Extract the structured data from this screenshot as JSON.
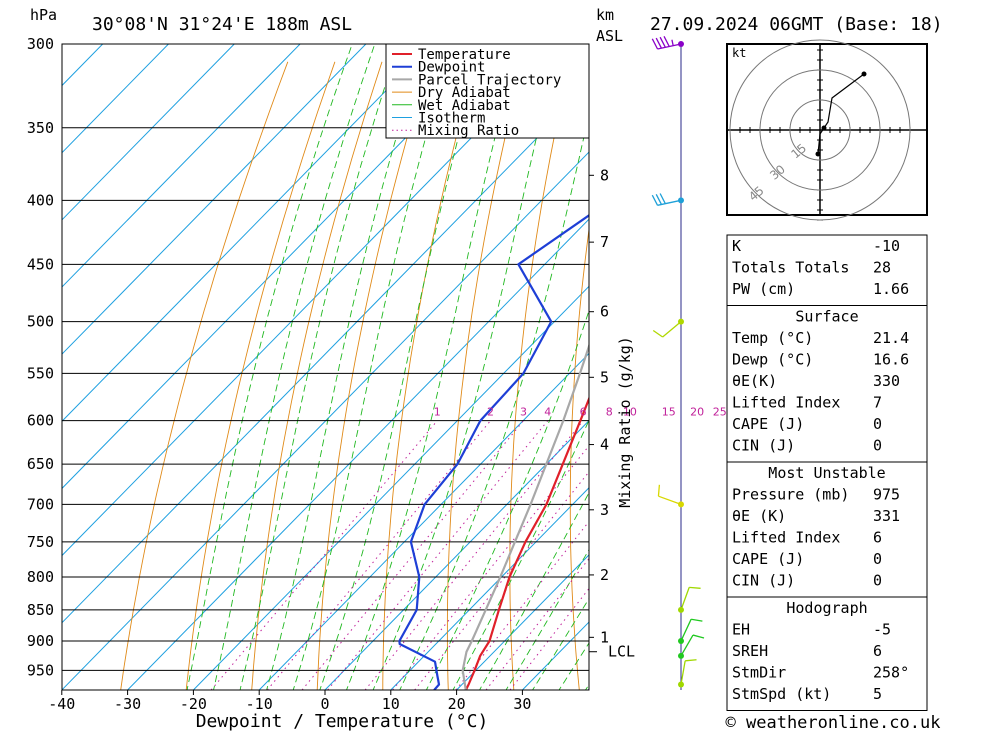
{
  "header": {
    "pressure_unit": "hPa",
    "location": "30°08'N  31°24'E  188m  ASL",
    "km_label": "km",
    "asl_label": "ASL",
    "datetime": "27.09.2024  06GMT  (Base: 18)"
  },
  "chart_data": {
    "type": "line",
    "subtype": "skew-T log-p diagram",
    "xlabel": "Dewpoint / Temperature (°C)",
    "ylabel": "hPa",
    "mixing_ratio_axis_label": "Mixing Ratio (g/kg)",
    "xlim": [
      -40,
      40
    ],
    "ylim": [
      985,
      300
    ],
    "pressure_ticks": [
      300,
      350,
      400,
      450,
      500,
      550,
      600,
      650,
      700,
      750,
      800,
      850,
      900,
      950
    ],
    "temperature_ticks": [
      -40,
      -30,
      -20,
      -10,
      0,
      10,
      20,
      30
    ],
    "km_ticks": [
      {
        "km": 8,
        "p": 382
      },
      {
        "km": 7,
        "p": 432
      },
      {
        "km": 6,
        "p": 491
      },
      {
        "km": 5,
        "p": 554
      },
      {
        "km": 4,
        "p": 627
      },
      {
        "km": 3,
        "p": 707
      },
      {
        "km": 2,
        "p": 797
      },
      {
        "km": 1,
        "p": 894
      }
    ],
    "lcl": {
      "label": "LCL",
      "p": 918
    },
    "mixing_ratio_labels": [
      "1",
      "2",
      "3",
      "4",
      "6",
      "8",
      "10",
      "15",
      "20",
      "25"
    ],
    "mixing_ratio_values": [
      1,
      2,
      3,
      4,
      6,
      8,
      10,
      15,
      20,
      25
    ],
    "legend": [
      "Temperature",
      "Dewpoint",
      "Parcel Trajectory",
      "Dry Adiabat",
      "Wet Adiabat",
      "Isotherm",
      "Mixing Ratio"
    ],
    "legend_position": "top-right of plot",
    "series": [
      {
        "name": "Temperature",
        "color": "#e0202a",
        "p": [
          985,
          975,
          950,
          925,
          900,
          850,
          800,
          750,
          700,
          650,
          600,
          550,
          500,
          450,
          400,
          350,
          300
        ],
        "t": [
          21.4,
          21.0,
          19.8,
          18.5,
          17.7,
          14.5,
          11.2,
          8.4,
          6.0,
          2.5,
          -1.3,
          -5.5,
          -10.0,
          -15.5,
          -21.5,
          -31.0,
          -40.5
        ]
      },
      {
        "name": "Dewpoint",
        "color": "#1e3fd6",
        "p": [
          985,
          975,
          960,
          935,
          905,
          900,
          850,
          800,
          750,
          700,
          650,
          600,
          550,
          500,
          450,
          400,
          350,
          300
        ],
        "t": [
          16.6,
          16.5,
          15.0,
          12.5,
          4.5,
          4.0,
          2.0,
          -2.5,
          -9.0,
          -12.5,
          -13.5,
          -16.5,
          -17.0,
          -20.5,
          -34.0,
          -29.5,
          -34.0,
          -40.0
        ]
      },
      {
        "name": "Parcel Trajectory",
        "color": "#a8a8a8",
        "p": [
          985,
          950,
          918,
          900,
          850,
          800,
          750,
          700,
          650,
          600,
          550,
          500,
          450,
          400,
          350,
          300
        ],
        "t": [
          21.4,
          18.0,
          15.8,
          15.0,
          12.5,
          9.8,
          6.8,
          3.6,
          0.0,
          -3.9,
          -8.4,
          -13.5,
          -19.5,
          -26.5,
          -35.0,
          -44.5
        ]
      }
    ],
    "hodograph": {
      "unit_label": "kt",
      "ring_labels": [
        "15",
        "30",
        "45"
      ],
      "ring_speeds": [
        15,
        30,
        45
      ],
      "points": [
        [
          -1,
          -12
        ],
        [
          0,
          -2
        ],
        [
          2,
          1
        ],
        [
          4,
          4
        ],
        [
          6,
          16
        ],
        [
          22,
          28
        ]
      ]
    },
    "wind_barbs": [
      {
        "p": 300,
        "dir": 258,
        "speed": 35,
        "color": "#8a00c8"
      },
      {
        "p": 400,
        "dir": 258,
        "speed": 30,
        "color": "#1ea0d8"
      },
      {
        "p": 500,
        "dir": 230,
        "speed": 10,
        "color": "#b0d800"
      },
      {
        "p": 700,
        "dir": 290,
        "speed": 10,
        "color": "#d8d800"
      },
      {
        "p": 850,
        "dir": 20,
        "speed": 10,
        "color": "#a0d800"
      },
      {
        "p": 900,
        "dir": 25,
        "speed": 10,
        "color": "#20c820"
      },
      {
        "p": 925,
        "dir": 30,
        "speed": 10,
        "color": "#20c820"
      },
      {
        "p": 975,
        "dir": 10,
        "speed": 10,
        "color": "#a0d800"
      }
    ]
  },
  "indices": {
    "rows": [
      {
        "label": "K",
        "value": "-10"
      },
      {
        "label": "Totals Totals",
        "value": "28"
      },
      {
        "label": "PW (cm)",
        "value": "1.66"
      }
    ]
  },
  "surface": {
    "title": "Surface",
    "rows": [
      {
        "label": "Temp (°C)",
        "value": "21.4"
      },
      {
        "label": "Dewp (°C)",
        "value": "16.6"
      },
      {
        "label": "θE(K)",
        "value": "330"
      },
      {
        "label": "Lifted Index",
        "value": "7"
      },
      {
        "label": "CAPE (J)",
        "value": "0"
      },
      {
        "label": "CIN (J)",
        "value": "0"
      }
    ]
  },
  "most_unstable": {
    "title": "Most Unstable",
    "rows": [
      {
        "label": "Pressure (mb)",
        "value": "975"
      },
      {
        "label": "θE (K)",
        "value": "331"
      },
      {
        "label": "Lifted Index",
        "value": "6"
      },
      {
        "label": "CAPE (J)",
        "value": "0"
      },
      {
        "label": "CIN (J)",
        "value": "0"
      }
    ]
  },
  "hodograph_table": {
    "title": "Hodograph",
    "rows": [
      {
        "label": "EH",
        "value": "-5"
      },
      {
        "label": "SREH",
        "value": "6"
      },
      {
        "label": "StmDir",
        "value": "258°"
      },
      {
        "label": "StmSpd (kt)",
        "value": "5"
      }
    ]
  },
  "footer": {
    "copyright": "© weatheronline.co.uk"
  }
}
